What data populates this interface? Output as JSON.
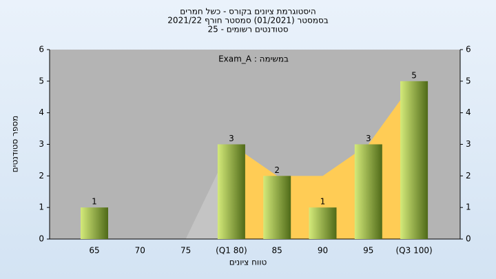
{
  "chart_data": {
    "type": "bar",
    "title": "היסטוגרמת ציונים בקורס - כשל חמרים",
    "subtitle": [
      "בסמסטר (01/2021) סמסטר חורף 2021/22",
      "סטודנטים רשומים - 25"
    ],
    "annotation": "במשימה : Exam_A",
    "x_label": "טווח ציונים",
    "y_label": "מספר סטודנטים",
    "categories": [
      "65",
      "70",
      "75",
      "(Q1 80)",
      "85",
      "90",
      "95",
      "(Q3 100)"
    ],
    "values": [
      1,
      0,
      0,
      3,
      2,
      1,
      3,
      5
    ],
    "value_labels": [
      "1",
      null,
      null,
      "3",
      "2",
      "1",
      "3",
      "5"
    ],
    "colors": {
      "bar_light": "#d4ea7a",
      "bar_dark": "#4f6a18"
    },
    "background_area": {
      "values": [
        null,
        null,
        0,
        3,
        2,
        2,
        3,
        5
      ],
      "color": "#ffcc55",
      "lead_color": "#c4c4c4"
    },
    "ylim": [
      0,
      6
    ],
    "yticks": [
      0,
      1,
      2,
      3,
      4,
      5,
      6
    ],
    "y2lim": [
      0,
      6
    ],
    "y2ticks": [
      0,
      1,
      2,
      3,
      4,
      5,
      6
    ],
    "grid": false
  }
}
